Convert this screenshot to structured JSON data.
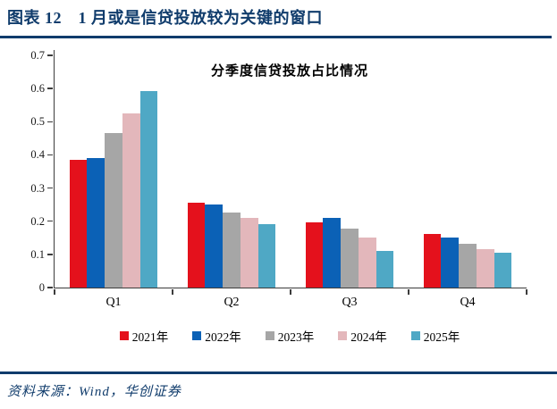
{
  "header": {
    "title": "图表 12　1 月或是信贷投放较为关键的窗口"
  },
  "chart": {
    "title": "分季度信贷投放占比情况"
  },
  "chart_data": {
    "type": "bar",
    "title": "分季度信贷投放占比情况",
    "categories": [
      "Q1",
      "Q2",
      "Q3",
      "Q4"
    ],
    "series": [
      {
        "name": "2021年",
        "color": "#e4111c",
        "values": [
          0.385,
          0.255,
          0.197,
          0.162
        ]
      },
      {
        "name": "2022年",
        "color": "#0b61b6",
        "values": [
          0.39,
          0.25,
          0.21,
          0.15
        ]
      },
      {
        "name": "2023年",
        "color": "#a6a6a6",
        "values": [
          0.465,
          0.225,
          0.178,
          0.132
        ]
      },
      {
        "name": "2024年",
        "color": "#e3b7bb",
        "values": [
          0.525,
          0.21,
          0.15,
          0.115
        ]
      },
      {
        "name": "2025年",
        "color": "#4fa8c5",
        "values": [
          0.593,
          0.19,
          0.11,
          0.105
        ]
      }
    ],
    "xlabel": "",
    "ylabel": "",
    "ylim": [
      0,
      0.7
    ],
    "ytick_step": 0.1,
    "ytick_labels": [
      "0",
      "0.1",
      "0.2",
      "0.3",
      "0.4",
      "0.5",
      "0.6",
      "0.7"
    ],
    "grid": false,
    "legend_position": "bottom"
  },
  "footer": {
    "source": "资料来源：Wind，华创证券"
  },
  "colors": {
    "accent_navy": "#103c6c",
    "axis": "#3c3c3c"
  }
}
